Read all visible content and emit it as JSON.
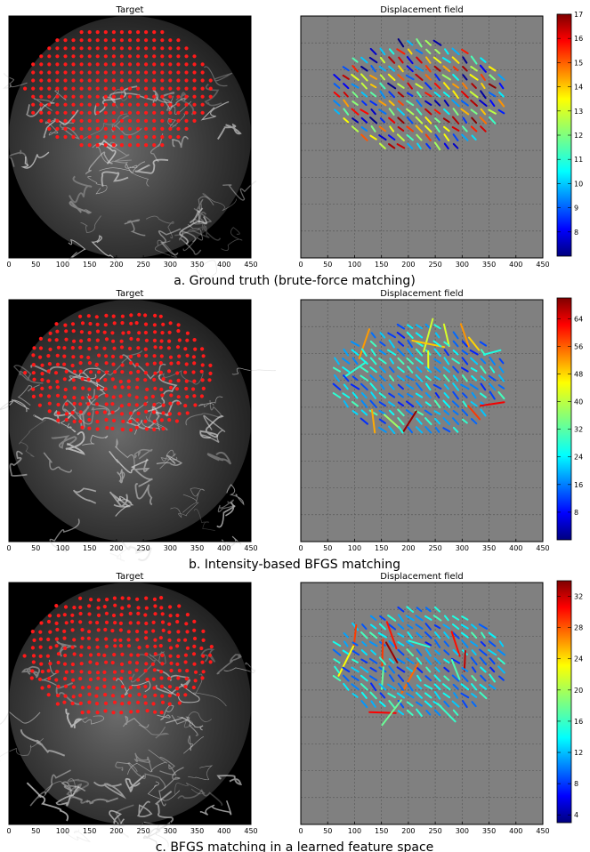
{
  "panels": [
    {
      "caption": "a. Ground truth (brute-force matching)",
      "left_title": "Target",
      "right_title": "Displacement field",
      "x_ticks": [
        "0",
        "50",
        "100",
        "150",
        "200",
        "250",
        "300",
        "350",
        "400",
        "450"
      ],
      "colorbar_ticks": [
        "8",
        "9",
        "10",
        "11",
        "12",
        "13",
        "14",
        "15",
        "16",
        "17"
      ],
      "colorbar_range": [
        7,
        17
      ],
      "colors": {
        "panel_bg": "#808080",
        "grid": "#5a5a5a"
      }
    },
    {
      "caption": "b. Intensity-based BFGS matching",
      "left_title": "Target",
      "right_title": "Displacement field",
      "x_ticks": [
        "0",
        "50",
        "100",
        "150",
        "200",
        "250",
        "300",
        "350",
        "400",
        "450"
      ],
      "colorbar_ticks": [
        "8",
        "16",
        "24",
        "32",
        "40",
        "48",
        "56",
        "64"
      ],
      "colorbar_range": [
        0,
        70
      ],
      "colors": {
        "panel_bg": "#808080",
        "grid": "#5a5a5a"
      }
    },
    {
      "caption": "c. BFGS matching in a learned feature space",
      "left_title": "Target",
      "right_title": "Displacement field",
      "x_ticks": [
        "0",
        "50",
        "100",
        "150",
        "200",
        "250",
        "300",
        "350",
        "400",
        "450"
      ],
      "colorbar_ticks": [
        "4",
        "8",
        "12",
        "16",
        "20",
        "24",
        "28",
        "32"
      ],
      "colorbar_range": [
        3,
        34
      ],
      "colors": {
        "panel_bg": "#808080",
        "grid": "#5a5a5a"
      }
    }
  ],
  "chart_data": [
    {
      "type": "scatter",
      "title": "Target",
      "xlim": [
        0,
        450
      ],
      "ylim": [
        0,
        450
      ],
      "grid": false,
      "note_series": "red grid markers over a circular microscopy image"
    },
    {
      "type": "quiver",
      "title": "Displacement field",
      "xlim": [
        0,
        450
      ],
      "ylim": [
        0,
        450
      ],
      "grid": true,
      "colorbar": {
        "min": 7,
        "max": 17,
        "ticks": [
          8,
          9,
          10,
          11,
          12,
          13,
          14,
          15,
          16,
          17
        ]
      }
    },
    {
      "type": "quiver",
      "title": "Displacement field",
      "xlim": [
        0,
        450
      ],
      "ylim": [
        0,
        450
      ],
      "grid": true,
      "colorbar": {
        "min": 0,
        "max": 70,
        "ticks": [
          8,
          16,
          24,
          32,
          40,
          48,
          56,
          64
        ]
      }
    },
    {
      "type": "quiver",
      "title": "Displacement field",
      "xlim": [
        0,
        450
      ],
      "ylim": [
        0,
        450
      ],
      "grid": true,
      "colorbar": {
        "min": 3,
        "max": 34,
        "ticks": [
          4,
          8,
          12,
          16,
          20,
          24,
          28,
          32
        ]
      }
    }
  ]
}
